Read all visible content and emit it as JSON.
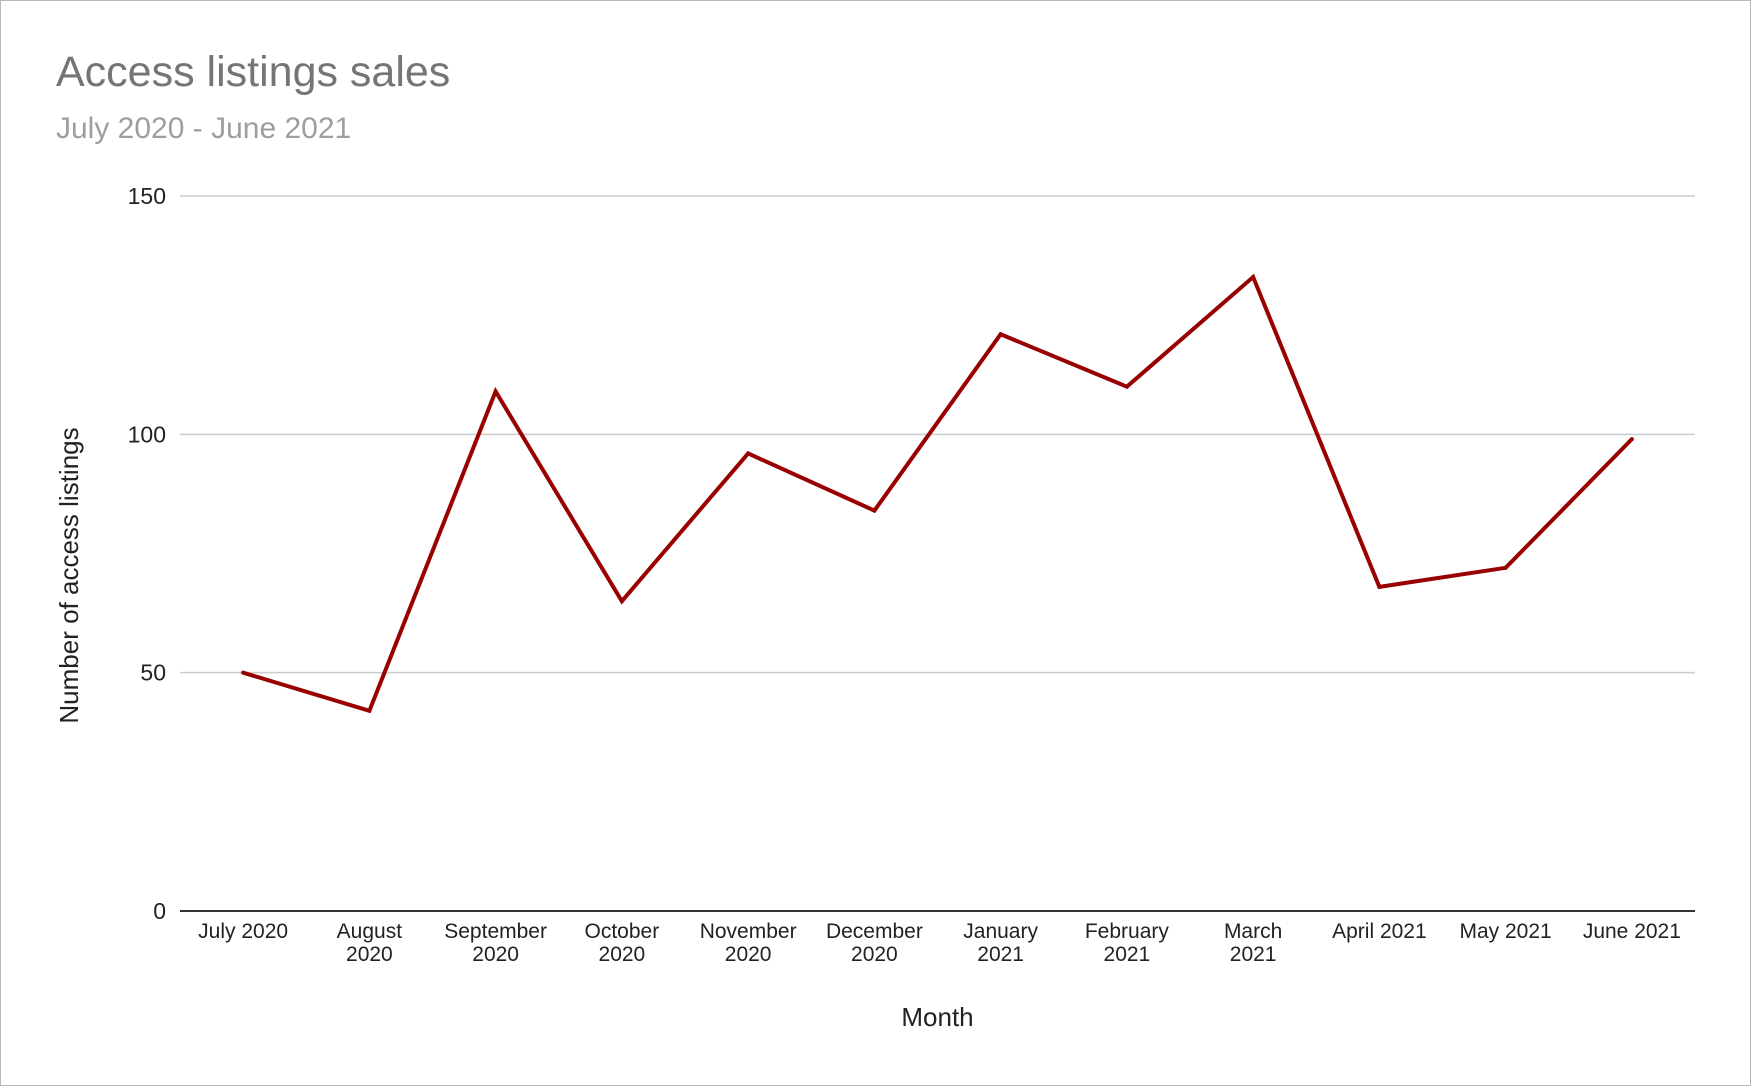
{
  "chart": {
    "title": "Access listings sales",
    "subtitle": "July 2020 - June 2021"
  },
  "chart_data": {
    "type": "line",
    "title": "Access listings sales",
    "subtitle": "July 2020 - June 2021",
    "xlabel": "Month",
    "ylabel": "Number of access listings",
    "ylim": [
      0,
      150
    ],
    "yticks": [
      0,
      50,
      100,
      150
    ],
    "grid": true,
    "legend": "none",
    "line_color": "#990000",
    "categories": [
      "July 2020",
      "August 2020",
      "September 2020",
      "October 2020",
      "November 2020",
      "December 2020",
      "January 2021",
      "February 2021",
      "March 2021",
      "April 2021",
      "May 2021",
      "June 2021"
    ],
    "category_lines": [
      [
        "July 2020"
      ],
      [
        "August",
        "2020"
      ],
      [
        "September",
        "2020"
      ],
      [
        "October",
        "2020"
      ],
      [
        "November",
        "2020"
      ],
      [
        "December",
        "2020"
      ],
      [
        "January",
        "2021"
      ],
      [
        "February",
        "2021"
      ],
      [
        "March",
        "2021"
      ],
      [
        "April 2021"
      ],
      [
        "May 2021"
      ],
      [
        "June 2021"
      ]
    ],
    "series": [
      {
        "values": [
          50,
          42,
          109,
          65,
          96,
          84,
          121,
          110,
          133,
          68,
          72,
          99
        ]
      }
    ]
  }
}
